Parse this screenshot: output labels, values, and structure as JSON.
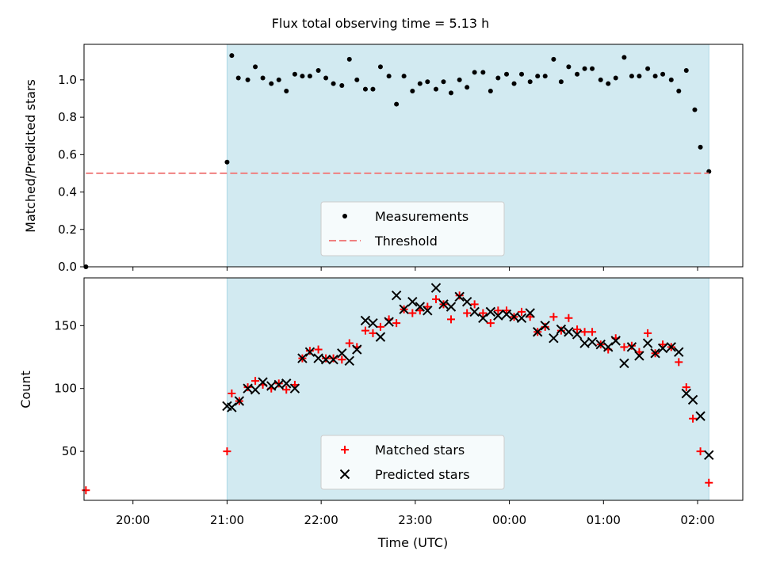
{
  "figure": {
    "title": "Flux total observing time = 5.13 h",
    "top_ylabel": "Matched/Predicted stars",
    "bottom_ylabel": "Count",
    "xlabel": "Time (UTC)"
  },
  "chart_data": [
    {
      "type": "scatter",
      "title": "Flux total observing time = 5.13 h",
      "xlabel": "",
      "ylabel": "Matched/Predicted stars",
      "x_unit": "hours since 19:00 UTC",
      "xlim": [
        19.48,
        26.48
      ],
      "ylim": [
        0,
        1.19
      ],
      "yticks": [
        0.0,
        0.2,
        0.4,
        0.6,
        0.8,
        1.0
      ],
      "grid": false,
      "legend_position": "bottom-center",
      "observing_window": [
        21.0,
        26.12
      ],
      "observing_window_color": "#add8e6",
      "series": [
        {
          "name": "Measurements",
          "marker": "dot",
          "color": "#000000",
          "points": [
            [
              19.5,
              0.0
            ],
            [
              21.0,
              0.56
            ],
            [
              21.05,
              1.13
            ],
            [
              21.12,
              1.01
            ],
            [
              21.22,
              1.0
            ],
            [
              21.3,
              1.07
            ],
            [
              21.38,
              1.01
            ],
            [
              21.47,
              0.98
            ],
            [
              21.55,
              1.0
            ],
            [
              21.63,
              0.94
            ],
            [
              21.72,
              1.03
            ],
            [
              21.8,
              1.02
            ],
            [
              21.88,
              1.02
            ],
            [
              21.97,
              1.05
            ],
            [
              22.05,
              1.01
            ],
            [
              22.13,
              0.98
            ],
            [
              22.22,
              0.97
            ],
            [
              22.3,
              1.11
            ],
            [
              22.38,
              1.0
            ],
            [
              22.47,
              0.95
            ],
            [
              22.55,
              0.95
            ],
            [
              22.63,
              1.07
            ],
            [
              22.72,
              1.02
            ],
            [
              22.8,
              0.87
            ],
            [
              22.88,
              1.02
            ],
            [
              22.97,
              0.94
            ],
            [
              23.05,
              0.98
            ],
            [
              23.13,
              0.99
            ],
            [
              23.22,
              0.95
            ],
            [
              23.3,
              0.99
            ],
            [
              23.38,
              0.93
            ],
            [
              23.47,
              1.0
            ],
            [
              23.55,
              0.96
            ],
            [
              23.63,
              1.04
            ],
            [
              23.72,
              1.04
            ],
            [
              23.8,
              0.94
            ],
            [
              23.88,
              1.01
            ],
            [
              23.97,
              1.03
            ],
            [
              24.05,
              0.98
            ],
            [
              24.13,
              1.03
            ],
            [
              24.22,
              0.99
            ],
            [
              24.3,
              1.02
            ],
            [
              24.38,
              1.02
            ],
            [
              24.47,
              1.11
            ],
            [
              24.55,
              0.99
            ],
            [
              24.63,
              1.07
            ],
            [
              24.72,
              1.03
            ],
            [
              24.8,
              1.06
            ],
            [
              24.88,
              1.06
            ],
            [
              24.97,
              1.0
            ],
            [
              25.05,
              0.98
            ],
            [
              25.13,
              1.01
            ],
            [
              25.22,
              1.12
            ],
            [
              25.3,
              1.02
            ],
            [
              25.38,
              1.02
            ],
            [
              25.47,
              1.06
            ],
            [
              25.55,
              1.02
            ],
            [
              25.63,
              1.03
            ],
            [
              25.72,
              1.0
            ],
            [
              25.8,
              0.94
            ],
            [
              25.88,
              1.05
            ],
            [
              25.97,
              0.84
            ],
            [
              26.03,
              0.64
            ],
            [
              26.12,
              0.51
            ]
          ]
        },
        {
          "name": "Threshold",
          "marker": "dashed-line",
          "color": "#f08080",
          "points": [
            [
              19.5,
              0.5
            ],
            [
              26.12,
              0.5
            ]
          ]
        }
      ]
    },
    {
      "type": "scatter",
      "title": "",
      "xlabel": "Time (UTC)",
      "ylabel": "Count",
      "x_unit": "hours since 19:00 UTC",
      "xlim": [
        19.48,
        26.48
      ],
      "ylim": [
        11,
        188
      ],
      "yticks": [
        50,
        100,
        150
      ],
      "xtick_labels": [
        "20:00",
        "21:00",
        "22:00",
        "23:00",
        "00:00",
        "01:00",
        "02:00"
      ],
      "xtick_values": [
        20,
        21,
        22,
        23,
        24,
        25,
        26
      ],
      "grid": false,
      "legend_position": "bottom-center",
      "observing_window": [
        21.0,
        26.12
      ],
      "observing_window_color": "#add8e6",
      "series": [
        {
          "name": "Matched stars",
          "marker": "plus",
          "color": "#ff0000",
          "points": [
            [
              19.5,
              19
            ],
            [
              21.0,
              50
            ],
            [
              21.05,
              96
            ],
            [
              21.13,
              90
            ],
            [
              21.22,
              101
            ],
            [
              21.3,
              106
            ],
            [
              21.38,
              103
            ],
            [
              21.47,
              100
            ],
            [
              21.55,
              104
            ],
            [
              21.63,
              99
            ],
            [
              21.72,
              103
            ],
            [
              21.8,
              124
            ],
            [
              21.88,
              130
            ],
            [
              21.97,
              131
            ],
            [
              22.05,
              124
            ],
            [
              22.13,
              124
            ],
            [
              22.22,
              123
            ],
            [
              22.3,
              136
            ],
            [
              22.38,
              133
            ],
            [
              22.47,
              146
            ],
            [
              22.55,
              144
            ],
            [
              22.63,
              149
            ],
            [
              22.72,
              155
            ],
            [
              22.8,
              152
            ],
            [
              22.88,
              163
            ],
            [
              22.97,
              160
            ],
            [
              23.05,
              162
            ],
            [
              23.13,
              165
            ],
            [
              23.22,
              171
            ],
            [
              23.3,
              167
            ],
            [
              23.38,
              155
            ],
            [
              23.47,
              174
            ],
            [
              23.55,
              160
            ],
            [
              23.63,
              167
            ],
            [
              23.72,
              160
            ],
            [
              23.8,
              152
            ],
            [
              23.88,
              162
            ],
            [
              23.97,
              162
            ],
            [
              24.05,
              157
            ],
            [
              24.13,
              161
            ],
            [
              24.22,
              157
            ],
            [
              24.3,
              145
            ],
            [
              24.38,
              149
            ],
            [
              24.47,
              157
            ],
            [
              24.55,
              146
            ],
            [
              24.63,
              156
            ],
            [
              24.72,
              147
            ],
            [
              24.8,
              145
            ],
            [
              24.88,
              145
            ],
            [
              24.97,
              135
            ],
            [
              25.05,
              131
            ],
            [
              25.13,
              140
            ],
            [
              25.22,
              133
            ],
            [
              25.3,
              134
            ],
            [
              25.38,
              129
            ],
            [
              25.47,
              144
            ],
            [
              25.55,
              128
            ],
            [
              25.63,
              135
            ],
            [
              25.72,
              133
            ],
            [
              25.8,
              121
            ],
            [
              25.88,
              101
            ],
            [
              25.95,
              76
            ],
            [
              26.03,
              50
            ],
            [
              26.12,
              25
            ]
          ]
        },
        {
          "name": "Predicted stars",
          "marker": "x",
          "color": "#000000",
          "points": [
            [
              21.0,
              86
            ],
            [
              21.05,
              85
            ],
            [
              21.13,
              90
            ],
            [
              21.22,
              100
            ],
            [
              21.3,
              99
            ],
            [
              21.38,
              105
            ],
            [
              21.47,
              102
            ],
            [
              21.55,
              103
            ],
            [
              21.63,
              104
            ],
            [
              21.72,
              100
            ],
            [
              21.8,
              124
            ],
            [
              21.88,
              129
            ],
            [
              21.97,
              124
            ],
            [
              22.05,
              123
            ],
            [
              22.13,
              123
            ],
            [
              22.22,
              128
            ],
            [
              22.3,
              122
            ],
            [
              22.38,
              131
            ],
            [
              22.47,
              154
            ],
            [
              22.55,
              152
            ],
            [
              22.63,
              141
            ],
            [
              22.72,
              153
            ],
            [
              22.8,
              174
            ],
            [
              22.88,
              163
            ],
            [
              22.97,
              169
            ],
            [
              23.05,
              165
            ],
            [
              23.13,
              162
            ],
            [
              23.22,
              180
            ],
            [
              23.3,
              167
            ],
            [
              23.38,
              165
            ],
            [
              23.47,
              173
            ],
            [
              23.55,
              169
            ],
            [
              23.63,
              161
            ],
            [
              23.72,
              156
            ],
            [
              23.8,
              161
            ],
            [
              23.88,
              158
            ],
            [
              23.97,
              159
            ],
            [
              24.05,
              157
            ],
            [
              24.13,
              156
            ],
            [
              24.22,
              160
            ],
            [
              24.3,
              145
            ],
            [
              24.38,
              150
            ],
            [
              24.47,
              140
            ],
            [
              24.55,
              147
            ],
            [
              24.63,
              145
            ],
            [
              24.72,
              143
            ],
            [
              24.8,
              136
            ],
            [
              24.88,
              137
            ],
            [
              24.97,
              135
            ],
            [
              25.05,
              133
            ],
            [
              25.13,
              138
            ],
            [
              25.22,
              120
            ],
            [
              25.3,
              133
            ],
            [
              25.38,
              126
            ],
            [
              25.47,
              136
            ],
            [
              25.55,
              128
            ],
            [
              25.63,
              132
            ],
            [
              25.72,
              133
            ],
            [
              25.8,
              129
            ],
            [
              25.88,
              96
            ],
            [
              25.95,
              91
            ],
            [
              26.03,
              78
            ],
            [
              26.12,
              47
            ]
          ]
        }
      ]
    }
  ]
}
